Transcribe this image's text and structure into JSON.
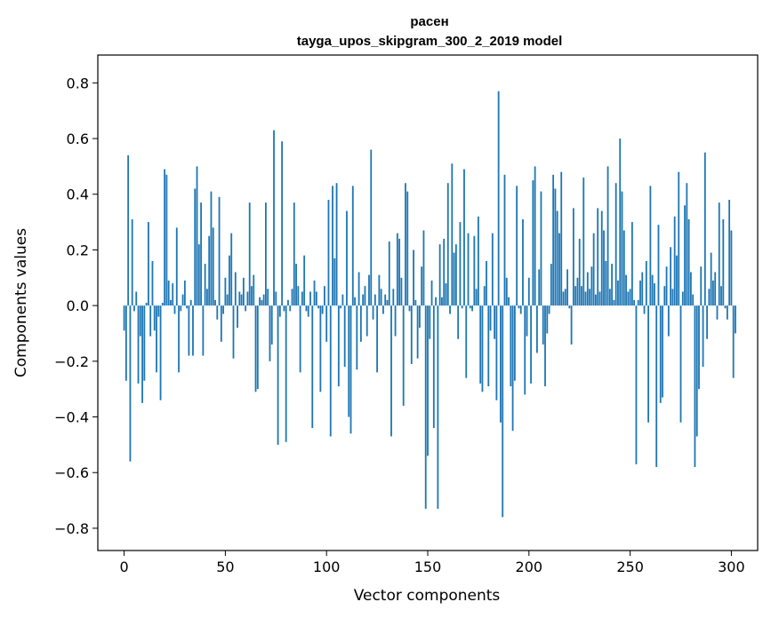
{
  "chart_data": {
    "type": "bar",
    "title": "расен",
    "subtitle": "tayga_upos_skipgram_300_2_2019 model",
    "xlabel": "Vector components",
    "ylabel": "Components values",
    "xlim": [
      -13,
      313
    ],
    "ylim": [
      -0.88,
      0.9
    ],
    "xticks": [
      0,
      50,
      100,
      150,
      200,
      250,
      300
    ],
    "yticks": [
      -0.8,
      -0.6,
      -0.4,
      -0.2,
      0.0,
      0.2,
      0.4,
      0.6,
      0.8
    ],
    "xtick_labels": [
      "0",
      "50",
      "100",
      "150",
      "200",
      "250",
      "300"
    ],
    "ytick_labels": [
      "−0.8",
      "−0.6",
      "−0.4",
      "−0.2",
      "0.0",
      "0.2",
      "0.4",
      "0.6",
      "0.8"
    ],
    "bar_color": "#1f77b4",
    "grid": false,
    "values": [
      -0.09,
      -0.27,
      0.54,
      -0.56,
      0.31,
      -0.02,
      0.05,
      -0.28,
      -0.11,
      -0.35,
      -0.27,
      0.01,
      0.3,
      -0.11,
      0.16,
      -0.09,
      -0.24,
      -0.04,
      -0.34,
      0.01,
      0.49,
      0.47,
      0.09,
      0.02,
      0.08,
      -0.03,
      0.28,
      -0.24,
      -0.02,
      0.04,
      0.09,
      -0.01,
      -0.18,
      0.02,
      -0.18,
      0.42,
      0.5,
      0.22,
      0.37,
      -0.18,
      0.15,
      0.06,
      0.25,
      0.41,
      0.28,
      0.02,
      -0.05,
      0.39,
      -0.13,
      -0.03,
      0.1,
      0.04,
      0.18,
      0.26,
      -0.19,
      0.12,
      -0.08,
      0.05,
      0.04,
      0.1,
      -0.02,
      0.05,
      0.37,
      0.07,
      0.11,
      -0.31,
      -0.3,
      0.03,
      0.02,
      0.04,
      0.37,
      0.06,
      -0.2,
      -0.14,
      0.63,
      0.05,
      -0.5,
      -0.04,
      0.59,
      -0.02,
      -0.49,
      0.02,
      -0.02,
      0.06,
      0.37,
      0.15,
      0.07,
      -0.24,
      0.05,
      0.18,
      -0.02,
      -0.04,
      0.05,
      -0.44,
      0.09,
      0.05,
      -0.01,
      -0.31,
      -0.03,
      0.07,
      -0.13,
      0.38,
      -0.47,
      0.43,
      0.17,
      0.44,
      -0.29,
      -0.01,
      0.04,
      -0.22,
      0.34,
      -0.4,
      -0.46,
      0.43,
      0.03,
      -0.23,
      0.12,
      -0.13,
      0.04,
      0.07,
      -0.11,
      0.11,
      0.56,
      -0.05,
      0.04,
      -0.24,
      0.11,
      0.06,
      -0.03,
      0.04,
      0.02,
      0.23,
      -0.47,
      0.06,
      -0.11,
      0.26,
      0.24,
      0.1,
      -0.36,
      0.44,
      0.41,
      -0.02,
      -0.21,
      0.2,
      0.02,
      -0.19,
      -0.08,
      0.14,
      0.27,
      -0.73,
      -0.54,
      -0.12,
      0.09,
      -0.44,
      0.03,
      -0.73,
      0.22,
      0.03,
      0.24,
      0.08,
      0.44,
      -0.03,
      0.51,
      0.19,
      0.22,
      -0.12,
      0.3,
      -0.01,
      0.49,
      -0.26,
      0.26,
      -0.01,
      -0.02,
      0.25,
      0.06,
      0.32,
      -0.28,
      -0.31,
      0.07,
      0.16,
      -0.29,
      -0.09,
      0.26,
      -0.12,
      -0.34,
      0.77,
      -0.42,
      -0.76,
      0.47,
      0.1,
      0.03,
      -0.29,
      -0.45,
      -0.27,
      0.43,
      -0.01,
      -0.03,
      0.31,
      -0.32,
      -0.11,
      0.1,
      -0.28,
      0.45,
      0.5,
      -0.17,
      0.13,
      0.41,
      -0.14,
      -0.29,
      -0.1,
      -0.03,
      0.15,
      0.47,
      0.42,
      0.34,
      0.26,
      0.48,
      0.05,
      0.06,
      0.13,
      -0.01,
      -0.14,
      0.35,
      0.07,
      0.1,
      0.24,
      0.07,
      0.46,
      0.05,
      0.12,
      0.06,
      0.14,
      0.26,
      0.04,
      0.35,
      0.05,
      0.34,
      0.27,
      0.16,
      0.5,
      0.06,
      0.15,
      0.02,
      0.44,
      0.09,
      0.6,
      0.41,
      0.27,
      0.11,
      0.05,
      0.06,
      0.3,
      0.02,
      -0.57,
      0.02,
      0.09,
      0.12,
      -0.03,
      0.16,
      -0.42,
      0.43,
      0.11,
      0.08,
      -0.58,
      0.29,
      -0.35,
      -0.33,
      0.07,
      0.14,
      -0.11,
      0.21,
      0.06,
      0.32,
      0.18,
      0.48,
      -0.42,
      0.05,
      0.36,
      0.44,
      0.31,
      0.12,
      0.04,
      -0.58,
      -0.47,
      -0.3,
      0.14,
      -0.22,
      0.55,
      -0.12,
      0.06,
      0.19,
      0.09,
      0.12,
      -0.05,
      0.37,
      0.07,
      0.31,
      -0.01,
      -0.05,
      0.38,
      0.27,
      -0.26,
      -0.1
    ]
  }
}
